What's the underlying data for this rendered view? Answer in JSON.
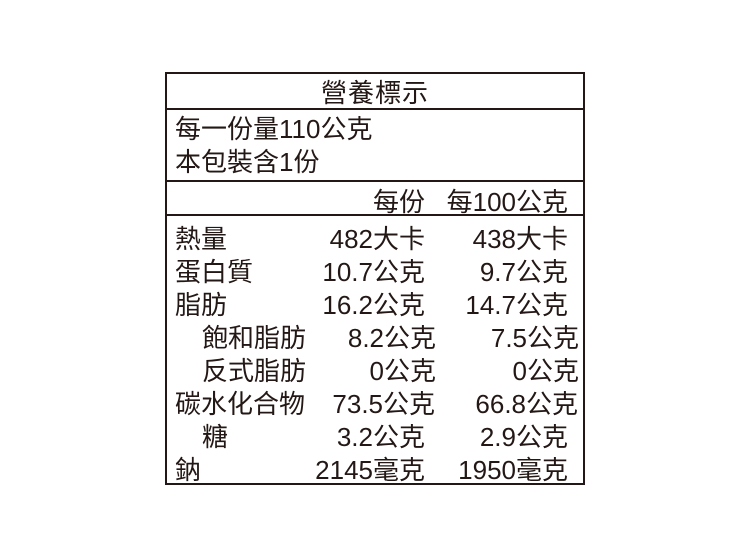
{
  "label": {
    "title": "營養標示",
    "serving_info": {
      "serving_size": "每一份量110公克",
      "servings_per_package": "本包裝含1份"
    },
    "columns": {
      "per_serving": "每份",
      "per_100g": "每100公克"
    },
    "rows": [
      {
        "name": "熱量",
        "indent": false,
        "per_serving": "482大卡",
        "per_100g": "438大卡"
      },
      {
        "name": "蛋白質",
        "indent": false,
        "per_serving": "10.7公克",
        "per_100g": "9.7公克"
      },
      {
        "name": "脂肪",
        "indent": false,
        "per_serving": "16.2公克",
        "per_100g": "14.7公克"
      },
      {
        "name": "飽和脂肪",
        "indent": true,
        "per_serving": "8.2公克",
        "per_100g": "7.5公克"
      },
      {
        "name": "反式脂肪",
        "indent": true,
        "per_serving": "0公克",
        "per_100g": "0公克"
      },
      {
        "name": "碳水化合物",
        "indent": false,
        "per_serving": "73.5公克",
        "per_100g": "66.8公克"
      },
      {
        "name": "糖",
        "indent": true,
        "per_serving": "3.2公克",
        "per_100g": "2.9公克"
      },
      {
        "name": "鈉",
        "indent": false,
        "per_serving": "2145毫克",
        "per_100g": "1950毫克"
      }
    ],
    "colors": {
      "text": "#231815",
      "border": "#231815",
      "background": "#ffffff"
    }
  },
  "chart_data": {
    "type": "table",
    "title": "營養標示",
    "columns": [
      "",
      "每份",
      "每100公克"
    ],
    "rows": [
      [
        "熱量",
        "482大卡",
        "438大卡"
      ],
      [
        "蛋白質",
        "10.7公克",
        "9.7公克"
      ],
      [
        "脂肪",
        "16.2公克",
        "14.7公克"
      ],
      [
        "飽和脂肪",
        "8.2公克",
        "7.5公克"
      ],
      [
        "反式脂肪",
        "0公克",
        "0公克"
      ],
      [
        "碳水化合物",
        "73.5公克",
        "66.8公克"
      ],
      [
        "糖",
        "3.2公克",
        "2.9公克"
      ],
      [
        "鈉",
        "2145毫克",
        "1950毫克"
      ]
    ]
  }
}
